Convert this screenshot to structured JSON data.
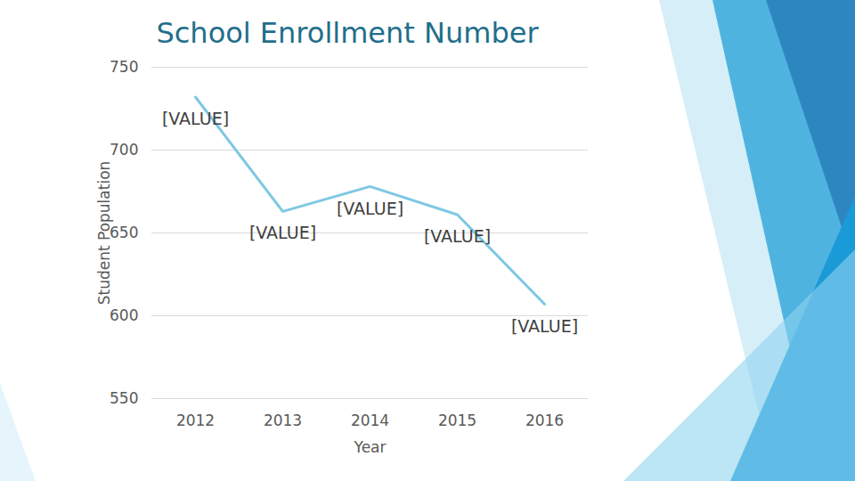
{
  "chart_data": {
    "type": "line",
    "title": "School Enrollment Number",
    "x_label": "Year",
    "y_label": "Student Population",
    "categories": [
      "2012",
      "2013",
      "2014",
      "2015",
      "2016"
    ],
    "values": [
      732,
      663,
      678,
      661,
      607
    ],
    "value_labels": [
      "[VALUE]",
      "[VALUE]",
      "[VALUE]",
      "[VALUE]",
      "[VALUE]"
    ],
    "data_labels": true,
    "color": "#7ec8e3",
    "ylim": [
      550,
      750
    ],
    "yticks": [
      550,
      600,
      650,
      700,
      750
    ],
    "grid": true
  }
}
